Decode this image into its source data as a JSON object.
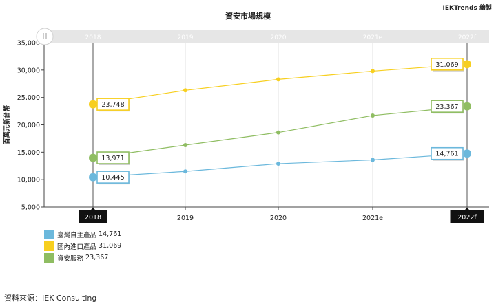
{
  "header": {
    "credit": "IEKTrends 繪製",
    "title": "資安市場規模"
  },
  "source": "資料來源：IEK Consulting",
  "slider_handle_icon": "pause-bars-icon",
  "chart_data": {
    "type": "line",
    "title": "資安市場規模",
    "ylabel": "百萬元新台幣",
    "xlabel": "",
    "categories": [
      "2018",
      "2019",
      "2020",
      "2021e",
      "2022f"
    ],
    "ylim": [
      5000,
      35000
    ],
    "yticks": [
      5000,
      10000,
      15000,
      20000,
      25000,
      30000,
      35000
    ],
    "ytick_labels": [
      "5,000",
      "10,000",
      "15,000",
      "20,000",
      "25,000",
      "30,000",
      "35,000"
    ],
    "grid": "vertical",
    "legend_position": "bottom-left",
    "highlighted_categories": [
      "2018",
      "2022f"
    ],
    "series": [
      {
        "name": "臺灣自主產品",
        "color": "#6bb8dc",
        "values": [
          10445,
          11500,
          12900,
          13600,
          14761
        ],
        "labels": {
          "first": "10,445",
          "last": "14,761"
        },
        "legend_value": "14,761"
      },
      {
        "name": "國內進口產品",
        "color": "#f7cf1f",
        "values": [
          23748,
          26300,
          28300,
          29800,
          31069
        ],
        "labels": {
          "first": "23,748",
          "last": "31,069"
        },
        "legend_value": "31,069"
      },
      {
        "name": "資安服務",
        "color": "#8fbd62",
        "values": [
          13971,
          16300,
          18600,
          21700,
          23367
        ],
        "labels": {
          "first": "13,971",
          "last": "23,367"
        },
        "legend_value": "23,367"
      }
    ]
  }
}
